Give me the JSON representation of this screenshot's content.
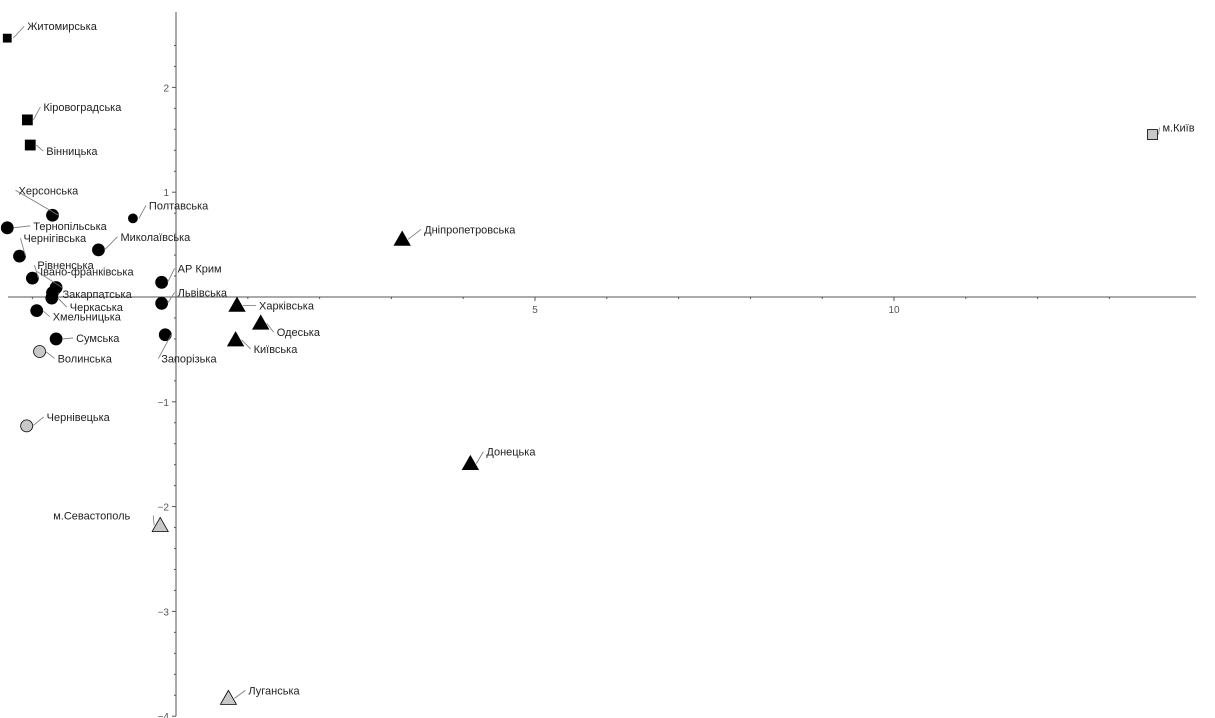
{
  "chart_data": {
    "type": "scatter",
    "title": "",
    "xlabel": "",
    "ylabel": "",
    "xlim": [
      -2.4,
      14.0
    ],
    "ylim": [
      -4.0,
      2.7
    ],
    "grid": false,
    "x_ticks": [
      5,
      10
    ],
    "y_ticks": [
      2,
      1,
      -1,
      -2,
      -3,
      -4
    ],
    "marker_colors": {
      "black": "#000000",
      "gray": "#c8c8c8",
      "stroke": "#000000"
    },
    "points": [
      {
        "label": "Житомирська",
        "x": -2.35,
        "y": 2.47,
        "marker": "square",
        "color": "black",
        "size": "small",
        "lx": 20,
        "ly": -8
      },
      {
        "label": "Кіровоградська",
        "x": -2.07,
        "y": 1.69,
        "marker": "square",
        "color": "black",
        "size": "large",
        "lx": 16,
        "ly": -9
      },
      {
        "label": "Вінницька",
        "x": -2.03,
        "y": 1.45,
        "marker": "square",
        "color": "black",
        "size": "large",
        "lx": 16,
        "ly": 10
      },
      {
        "label": "Херсонська",
        "x": -1.72,
        "y": 0.78,
        "marker": "circle",
        "color": "black",
        "size": "large",
        "lx": -34,
        "ly": -21
      },
      {
        "label": "Полтавська",
        "x": -0.6,
        "y": 0.75,
        "marker": "circle",
        "color": "black",
        "size": "small",
        "lx": 16,
        "ly": -9
      },
      {
        "label": "Тернопільська",
        "x": -2.35,
        "y": 0.66,
        "marker": "circle",
        "color": "black",
        "size": "large",
        "lx": 26,
        "ly": 2
      },
      {
        "label": "Миколаївська",
        "x": -1.08,
        "y": 0.45,
        "marker": "circle",
        "color": "black",
        "size": "large",
        "lx": 22,
        "ly": -9
      },
      {
        "label": "Чернігівська",
        "x": -2.18,
        "y": 0.39,
        "marker": "circle",
        "color": "black",
        "size": "large",
        "lx": 4,
        "ly": -14
      },
      {
        "label": "Рівненська",
        "x": -2.0,
        "y": 0.18,
        "marker": "circle",
        "color": "black",
        "size": "large",
        "lx": 5,
        "ly": -9
      },
      {
        "label": "Івано-франківська",
        "x": -1.67,
        "y": 0.09,
        "marker": "circle",
        "color": "black",
        "size": "large",
        "lx": -16,
        "ly": -12
      },
      {
        "label": "АР Крим",
        "x": -0.2,
        "y": 0.14,
        "marker": "circle",
        "color": "black",
        "size": "large",
        "lx": 16,
        "ly": -10
      },
      {
        "label": "Закарпатська",
        "x": -1.72,
        "y": 0.04,
        "marker": "circle",
        "color": "black",
        "size": "large",
        "lx": 10,
        "ly": 5
      },
      {
        "label": "Львівська",
        "x": -0.2,
        "y": -0.06,
        "marker": "circle",
        "color": "black",
        "size": "large",
        "lx": 16,
        "ly": -7
      },
      {
        "label": "Черкаська",
        "x": -1.73,
        "y": -0.01,
        "marker": "circle",
        "color": "black",
        "size": "large",
        "lx": 18,
        "ly": 13
      },
      {
        "label": "Хмельницька",
        "x": -1.94,
        "y": -0.13,
        "marker": "circle",
        "color": "black",
        "size": "large",
        "lx": 16,
        "ly": 10
      },
      {
        "label": "Сумська",
        "x": -1.67,
        "y": -0.4,
        "marker": "circle",
        "color": "black",
        "size": "large",
        "lx": 20,
        "ly": 3
      },
      {
        "label": "Запорізька",
        "x": -0.15,
        "y": -0.36,
        "marker": "circle",
        "color": "black",
        "size": "large",
        "lx": -4,
        "ly": 28
      },
      {
        "label": "Волинська",
        "x": -1.9,
        "y": -0.52,
        "marker": "circle",
        "color": "gray",
        "size": "large",
        "lx": 18,
        "ly": 11
      },
      {
        "label": "Чернівецька",
        "x": -2.08,
        "y": -1.23,
        "marker": "circle",
        "color": "gray",
        "size": "large",
        "lx": 20,
        "ly": -5
      },
      {
        "label": "Харківська",
        "x": 0.85,
        "y": -0.08,
        "marker": "triangle",
        "color": "black",
        "size": "large",
        "lx": 22,
        "ly": 4
      },
      {
        "label": "Одеська",
        "x": 1.18,
        "y": -0.25,
        "marker": "triangle",
        "color": "black",
        "size": "large",
        "lx": 16,
        "ly": 13
      },
      {
        "label": "Київська",
        "x": 0.83,
        "y": -0.41,
        "marker": "triangle",
        "color": "black",
        "size": "large",
        "lx": 18,
        "ly": 13
      },
      {
        "label": "Дніпропетровська",
        "x": 3.15,
        "y": 0.55,
        "marker": "triangle",
        "color": "black",
        "size": "large",
        "lx": 22,
        "ly": -6
      },
      {
        "label": "Донецька",
        "x": 4.1,
        "y": -1.59,
        "marker": "triangle",
        "color": "black",
        "size": "large",
        "lx": 16,
        "ly": -8
      },
      {
        "label": "м.Севастополь",
        "x": -0.22,
        "y": -2.18,
        "marker": "triangle",
        "color": "gray",
        "size": "large",
        "lx": -107,
        "ly": -6
      },
      {
        "label": "Луганська",
        "x": 0.73,
        "y": -3.83,
        "marker": "triangle",
        "color": "gray",
        "size": "large",
        "lx": 20,
        "ly": -4
      },
      {
        "label": "м.Київ",
        "x": 13.6,
        "y": 1.55,
        "marker": "square",
        "color": "gray",
        "size": "large",
        "lx": 10,
        "ly": -3
      }
    ]
  }
}
